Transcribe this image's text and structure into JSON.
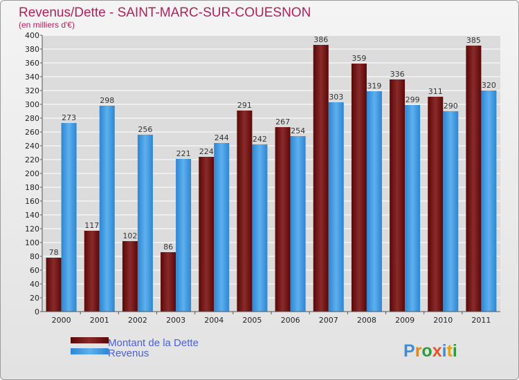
{
  "colors": {
    "title": "#b2205a",
    "debt": "#6e1212",
    "revenue": "#3d97de",
    "grid": "#ffffff",
    "legend_text": "#4a5fd8"
  },
  "logo": {
    "letters": [
      "P",
      "r",
      "o",
      "x",
      "i",
      "t",
      "i"
    ]
  },
  "chart_data": {
    "type": "bar",
    "title": "Revenus/Dette - SAINT-MARC-SUR-COUESNON",
    "subtitle": "(en milliers d'€)",
    "xlabel": "",
    "ylabel": "",
    "ylim": [
      0,
      400
    ],
    "yticks": [
      0,
      20,
      40,
      60,
      80,
      100,
      120,
      140,
      160,
      180,
      200,
      220,
      240,
      260,
      280,
      300,
      320,
      340,
      360,
      380,
      400
    ],
    "grid": true,
    "legend_position": "bottom-left",
    "categories": [
      "2000",
      "2001",
      "2002",
      "2003",
      "2004",
      "2005",
      "2006",
      "2007",
      "2008",
      "2009",
      "2010",
      "2011"
    ],
    "series": [
      {
        "name": "Montant de la Dette",
        "key": "debt",
        "values": [
          78,
          117,
          102,
          86,
          224,
          291,
          267,
          386,
          359,
          336,
          311,
          385
        ]
      },
      {
        "name": "Revenus",
        "key": "revenue",
        "values": [
          273,
          298,
          256,
          221,
          244,
          242,
          254,
          303,
          319,
          299,
          290,
          320
        ]
      }
    ]
  }
}
